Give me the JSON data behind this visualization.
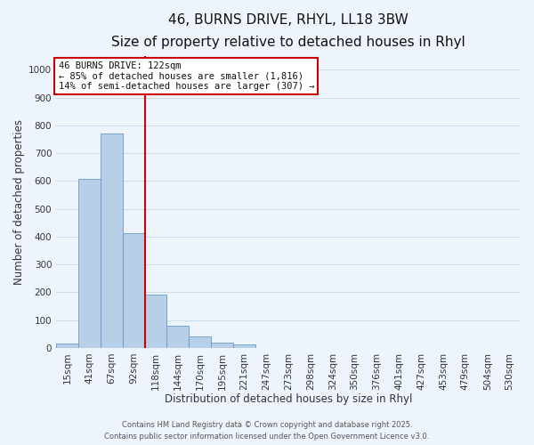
{
  "title": "46, BURNS DRIVE, RHYL, LL18 3BW",
  "subtitle": "Size of property relative to detached houses in Rhyl",
  "xlabel": "Distribution of detached houses by size in Rhyl",
  "ylabel": "Number of detached properties",
  "bar_labels": [
    "15sqm",
    "41sqm",
    "67sqm",
    "92sqm",
    "118sqm",
    "144sqm",
    "170sqm",
    "195sqm",
    "221sqm",
    "247sqm",
    "273sqm",
    "298sqm",
    "324sqm",
    "350sqm",
    "376sqm",
    "401sqm",
    "427sqm",
    "453sqm",
    "479sqm",
    "504sqm",
    "530sqm"
  ],
  "bar_values": [
    15,
    608,
    770,
    413,
    193,
    78,
    40,
    18,
    12,
    0,
    0,
    0,
    0,
    0,
    0,
    0,
    0,
    0,
    0,
    0,
    0
  ],
  "bar_color": "#b8cfe8",
  "bar_edge_color": "#6699cc",
  "vline_color": "#cc0000",
  "annotation_box_text": "46 BURNS DRIVE: 122sqm\n← 85% of detached houses are smaller (1,816)\n14% of semi-detached houses are larger (307) →",
  "annotation_box_color": "#ffffff",
  "annotation_box_edge_color": "#cc0000",
  "ylim": [
    0,
    1050
  ],
  "yticks": [
    0,
    100,
    200,
    300,
    400,
    500,
    600,
    700,
    800,
    900,
    1000
  ],
  "grid_color": "#ccdce8",
  "background_color": "#eef4fb",
  "footer_line1": "Contains HM Land Registry data © Crown copyright and database right 2025.",
  "footer_line2": "Contains public sector information licensed under the Open Government Licence v3.0.",
  "title_fontsize": 11,
  "subtitle_fontsize": 9,
  "axis_label_fontsize": 8.5,
  "tick_fontsize": 7.5,
  "annotation_fontsize": 7.5,
  "footer_fontsize": 6.0
}
